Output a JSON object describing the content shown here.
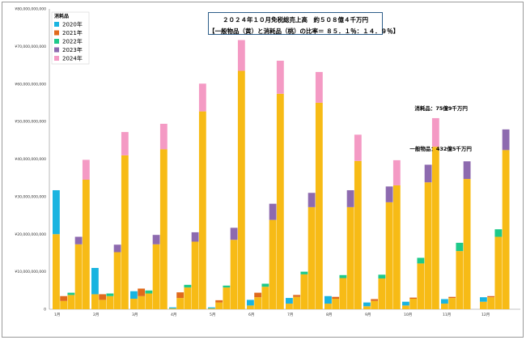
{
  "chart_data": {
    "type": "bar",
    "title": "２０２４年１０月免税総売上高　約５０８億４千万円",
    "subtitle": "【一般物品（黄）と消耗品（桃）の比率＝ ８５．１％：１４．９％】",
    "legend_title": "消耗品",
    "legend_position": "top-left",
    "grid": false,
    "ylim": [
      0,
      80000000000
    ],
    "yticks": [
      "0",
      "¥10,000,000,000",
      "¥20,000,000,000",
      "¥30,000,000,000",
      "¥40,000,000,000",
      "¥50,000,000,000",
      "¥60,000,000,000",
      "¥70,000,000,000",
      "¥80,000,000,000"
    ],
    "categories": [
      "1月",
      "2月",
      "3月",
      "4月",
      "5月",
      "6月",
      "7月",
      "8月",
      "9月",
      "10月",
      "11月",
      "12月"
    ],
    "series": [
      {
        "name": "2020年",
        "color": "#19b4e0",
        "general": [
          20000000000,
          4000000000,
          2800000000,
          200000000,
          200000000,
          1000000000,
          1500000000,
          1500000000,
          800000000,
          1000000000,
          1500000000,
          2000000000
        ],
        "consumables": [
          11700000000,
          7000000000,
          2000000000,
          300000000,
          300000000,
          1500000000,
          1500000000,
          2000000000,
          1000000000,
          1000000000,
          1200000000,
          1200000000
        ]
      },
      {
        "name": "2021年",
        "color": "#e06a1c",
        "general": [
          2200000000,
          2500000000,
          3500000000,
          3000000000,
          1800000000,
          3200000000,
          3300000000,
          2800000000,
          2200000000,
          2800000000,
          3000000000,
          3200000000
        ],
        "consumables": [
          1300000000,
          1500000000,
          2000000000,
          1500000000,
          600000000,
          1200000000,
          500000000,
          500000000,
          500000000,
          300000000,
          300000000,
          300000000
        ]
      },
      {
        "name": "2022年",
        "color": "#1ec98a",
        "general": [
          3800000000,
          3500000000,
          4200000000,
          5800000000,
          5800000000,
          6000000000,
          9300000000,
          8300000000,
          8200000000,
          12200000000,
          15500000000,
          19300000000
        ],
        "consumables": [
          600000000,
          700000000,
          800000000,
          700000000,
          500000000,
          800000000,
          700000000,
          800000000,
          1000000000,
          1500000000,
          2200000000,
          2000000000
        ]
      },
      {
        "name": "2023年",
        "color": "#8d6aaf",
        "general": [
          17300000000,
          15200000000,
          17300000000,
          18000000000,
          18500000000,
          23800000000,
          27200000000,
          27200000000,
          28500000000,
          33800000000,
          34700000000,
          42400000000
        ],
        "consumables": [
          2000000000,
          2000000000,
          2500000000,
          2500000000,
          3200000000,
          4300000000,
          3800000000,
          4500000000,
          4200000000,
          4700000000,
          4700000000,
          5500000000
        ]
      },
      {
        "name": "2024年",
        "color": "#f49ac4",
        "general": [
          34500000000,
          41000000000,
          42600000000,
          52700000000,
          63500000000,
          57400000000,
          55000000000,
          39500000000,
          33000000000,
          43300000000,
          null,
          null
        ],
        "consumables": [
          5300000000,
          6200000000,
          6800000000,
          7400000000,
          8200000000,
          8800000000,
          8200000000,
          7000000000,
          6700000000,
          7600000000,
          null,
          null
        ]
      }
    ],
    "annotations": [
      {
        "text": "消耗品：75億9千万円",
        "anchor_month": "10月"
      },
      {
        "text": "一般物品：432億5千万円",
        "anchor_month": "10月"
      }
    ]
  }
}
